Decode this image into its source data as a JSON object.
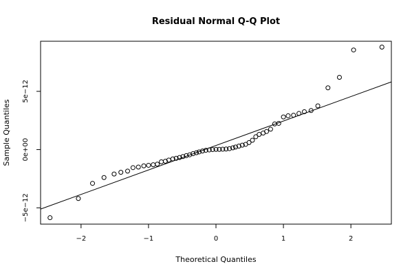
{
  "chart_data": {
    "type": "scatter",
    "title": "Residual Normal Q-Q Plot",
    "xlabel": "Theoretical Quantiles",
    "ylabel": "Sample Quantiles",
    "xlim": [
      -2.6,
      2.6
    ],
    "ylim": [
      -6.4,
      9.3
    ],
    "x_ticks": [
      -2,
      -1,
      0,
      1,
      2
    ],
    "x_tick_labels": [
      "−2",
      "−1",
      "0",
      "1",
      "2"
    ],
    "y_ticks": [
      -5,
      0,
      5
    ],
    "y_tick_labels": [
      "−5e−12",
      "0e+00",
      "5e−12"
    ],
    "y_unit_note": "y values in units of 1e-12",
    "grid": false,
    "legend": "none",
    "points": [
      [
        -2.46,
        -5.85
      ],
      [
        -2.04,
        -4.2
      ],
      [
        -1.83,
        -2.9
      ],
      [
        -1.66,
        -2.4
      ],
      [
        -1.51,
        -2.1
      ],
      [
        -1.41,
        -1.95
      ],
      [
        -1.31,
        -1.85
      ],
      [
        -1.23,
        -1.55
      ],
      [
        -1.15,
        -1.5
      ],
      [
        -1.07,
        -1.4
      ],
      [
        -1.0,
        -1.35
      ],
      [
        -0.93,
        -1.3
      ],
      [
        -0.87,
        -1.25
      ],
      [
        -0.81,
        -1.05
      ],
      [
        -0.75,
        -1.0
      ],
      [
        -0.7,
        -0.9
      ],
      [
        -0.64,
        -0.8
      ],
      [
        -0.59,
        -0.75
      ],
      [
        -0.54,
        -0.68
      ],
      [
        -0.49,
        -0.6
      ],
      [
        -0.44,
        -0.52
      ],
      [
        -0.39,
        -0.45
      ],
      [
        -0.34,
        -0.35
      ],
      [
        -0.29,
        -0.27
      ],
      [
        -0.25,
        -0.2
      ],
      [
        -0.2,
        -0.12
      ],
      [
        -0.15,
        -0.06
      ],
      [
        -0.1,
        -0.03
      ],
      [
        -0.05,
        0.0
      ],
      [
        0.0,
        0.02
      ],
      [
        0.05,
        0.02
      ],
      [
        0.1,
        0.03
      ],
      [
        0.15,
        0.05
      ],
      [
        0.2,
        0.08
      ],
      [
        0.25,
        0.15
      ],
      [
        0.29,
        0.22
      ],
      [
        0.34,
        0.3
      ],
      [
        0.39,
        0.38
      ],
      [
        0.44,
        0.45
      ],
      [
        0.49,
        0.6
      ],
      [
        0.54,
        0.8
      ],
      [
        0.59,
        1.1
      ],
      [
        0.64,
        1.3
      ],
      [
        0.7,
        1.42
      ],
      [
        0.75,
        1.55
      ],
      [
        0.81,
        1.75
      ],
      [
        0.87,
        2.2
      ],
      [
        0.93,
        2.25
      ],
      [
        1.0,
        2.8
      ],
      [
        1.07,
        2.9
      ],
      [
        1.15,
        2.95
      ],
      [
        1.23,
        3.1
      ],
      [
        1.31,
        3.25
      ],
      [
        1.41,
        3.35
      ],
      [
        1.51,
        3.75
      ],
      [
        1.66,
        5.3
      ],
      [
        1.83,
        6.2
      ],
      [
        2.04,
        8.55
      ],
      [
        2.46,
        8.8
      ]
    ],
    "reference_line": {
      "intercept": 0.35,
      "slope": 2.1
    }
  }
}
